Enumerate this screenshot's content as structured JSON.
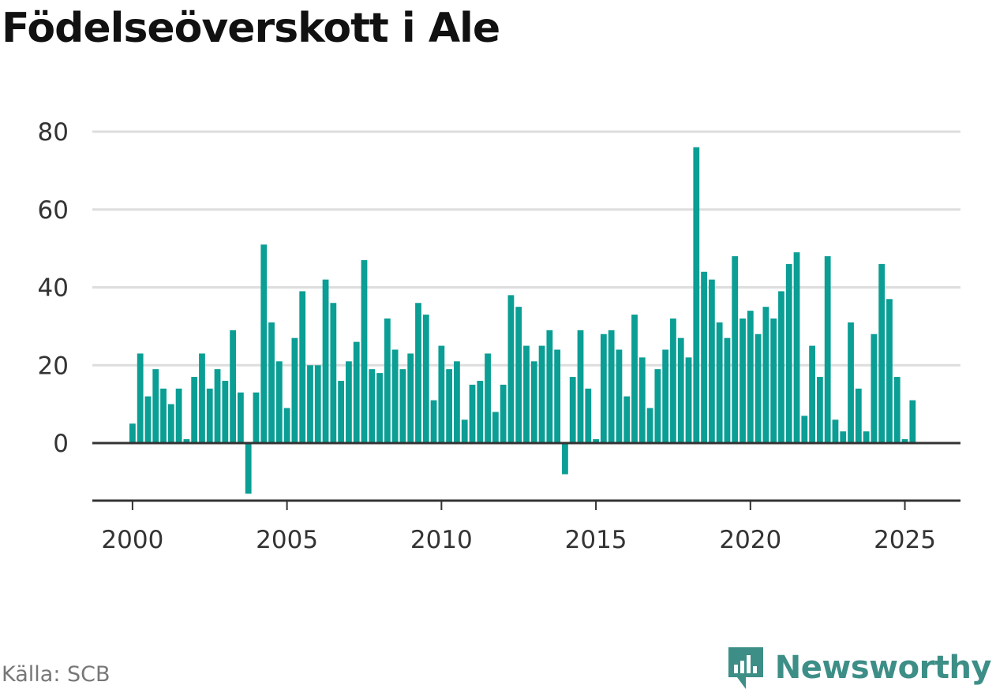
{
  "colors": {
    "bar": "#0a9e94",
    "grid": "#dddddd",
    "axis": "#333333",
    "brand": "#3d8e87"
  },
  "source": "Källa: SCB",
  "brand": {
    "name": "Newsworthy",
    "icon": "newsworthy-logo-icon"
  },
  "chart_data": {
    "type": "bar",
    "title": "Födelseöverskott i Ale",
    "xlabel": "",
    "ylabel": "",
    "ylim": [
      -14,
      82
    ],
    "xlim": [
      1998.7,
      2026.8
    ],
    "yticks": [
      0,
      20,
      40,
      60,
      80
    ],
    "xticks": [
      2000,
      2005,
      2010,
      2015,
      2020,
      2025
    ],
    "grid": true,
    "legend": "none",
    "frequency": "quarterly",
    "series": [
      {
        "start": "2000 Q1",
        "values": [
          5,
          23,
          12,
          19,
          14,
          10,
          14,
          1,
          17,
          23,
          14,
          19,
          16,
          29,
          13,
          -13,
          13,
          51,
          31,
          21,
          9,
          27,
          39,
          20,
          20,
          42,
          36,
          16,
          21,
          26,
          47,
          19,
          18,
          32,
          24,
          19,
          23,
          36,
          33,
          11,
          25,
          19,
          21,
          6,
          15,
          16,
          23,
          8,
          15,
          38,
          35,
          25,
          21,
          25,
          29,
          24,
          -8,
          17,
          29,
          14,
          1,
          28,
          29,
          24,
          12,
          33,
          22,
          9,
          19,
          24,
          32,
          27,
          22,
          76,
          44,
          42,
          31,
          27,
          48,
          32,
          34,
          28,
          35,
          32,
          39,
          46,
          49,
          7,
          25,
          17,
          48,
          6,
          3,
          31,
          14,
          3,
          28,
          46,
          37,
          17,
          1,
          11
        ]
      }
    ]
  }
}
